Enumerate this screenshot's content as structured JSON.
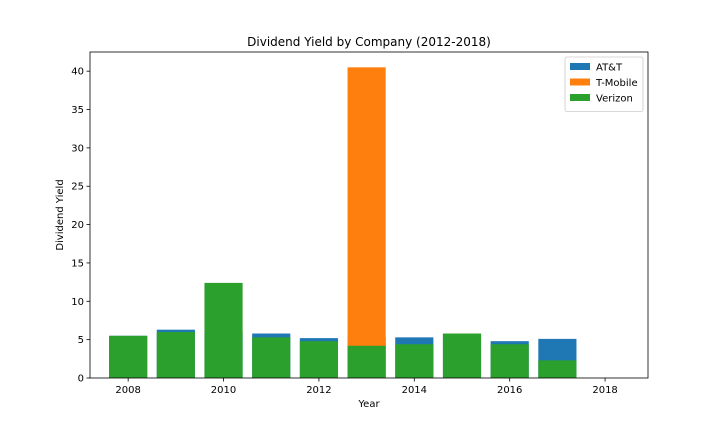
{
  "chart_data": {
    "type": "bar",
    "stacked": false,
    "title": "Dividend Yield by Company (2012-2018)",
    "xlabel": "Year",
    "ylabel": "Dividend Yield",
    "xlim": [
      2007.2,
      2018.9
    ],
    "ylim": [
      0,
      42.5
    ],
    "x_ticks": [
      2008,
      2010,
      2012,
      2014,
      2016,
      2018
    ],
    "y_ticks": [
      0,
      5,
      10,
      15,
      20,
      25,
      30,
      35,
      40
    ],
    "bar_width": 0.8,
    "legend_position": "top-right",
    "grid": false,
    "x": [
      2008,
      2009,
      2010,
      2011,
      2012,
      2013,
      2014,
      2015,
      2016,
      2017
    ],
    "series": [
      {
        "name": "AT&T",
        "color": "#1f77b4",
        "values": [
          5.5,
          6.3,
          6.0,
          5.8,
          5.2,
          5.3,
          5.3,
          5.7,
          4.8,
          5.1
        ]
      },
      {
        "name": "T-Mobile",
        "color": "#ff7f0e",
        "values": [
          null,
          null,
          null,
          null,
          null,
          40.5,
          null,
          null,
          null,
          null
        ]
      },
      {
        "name": "Verizon",
        "color": "#2ca02c",
        "values": [
          5.5,
          6.0,
          12.4,
          5.3,
          4.8,
          4.2,
          4.4,
          5.8,
          4.4,
          2.3
        ]
      }
    ]
  }
}
